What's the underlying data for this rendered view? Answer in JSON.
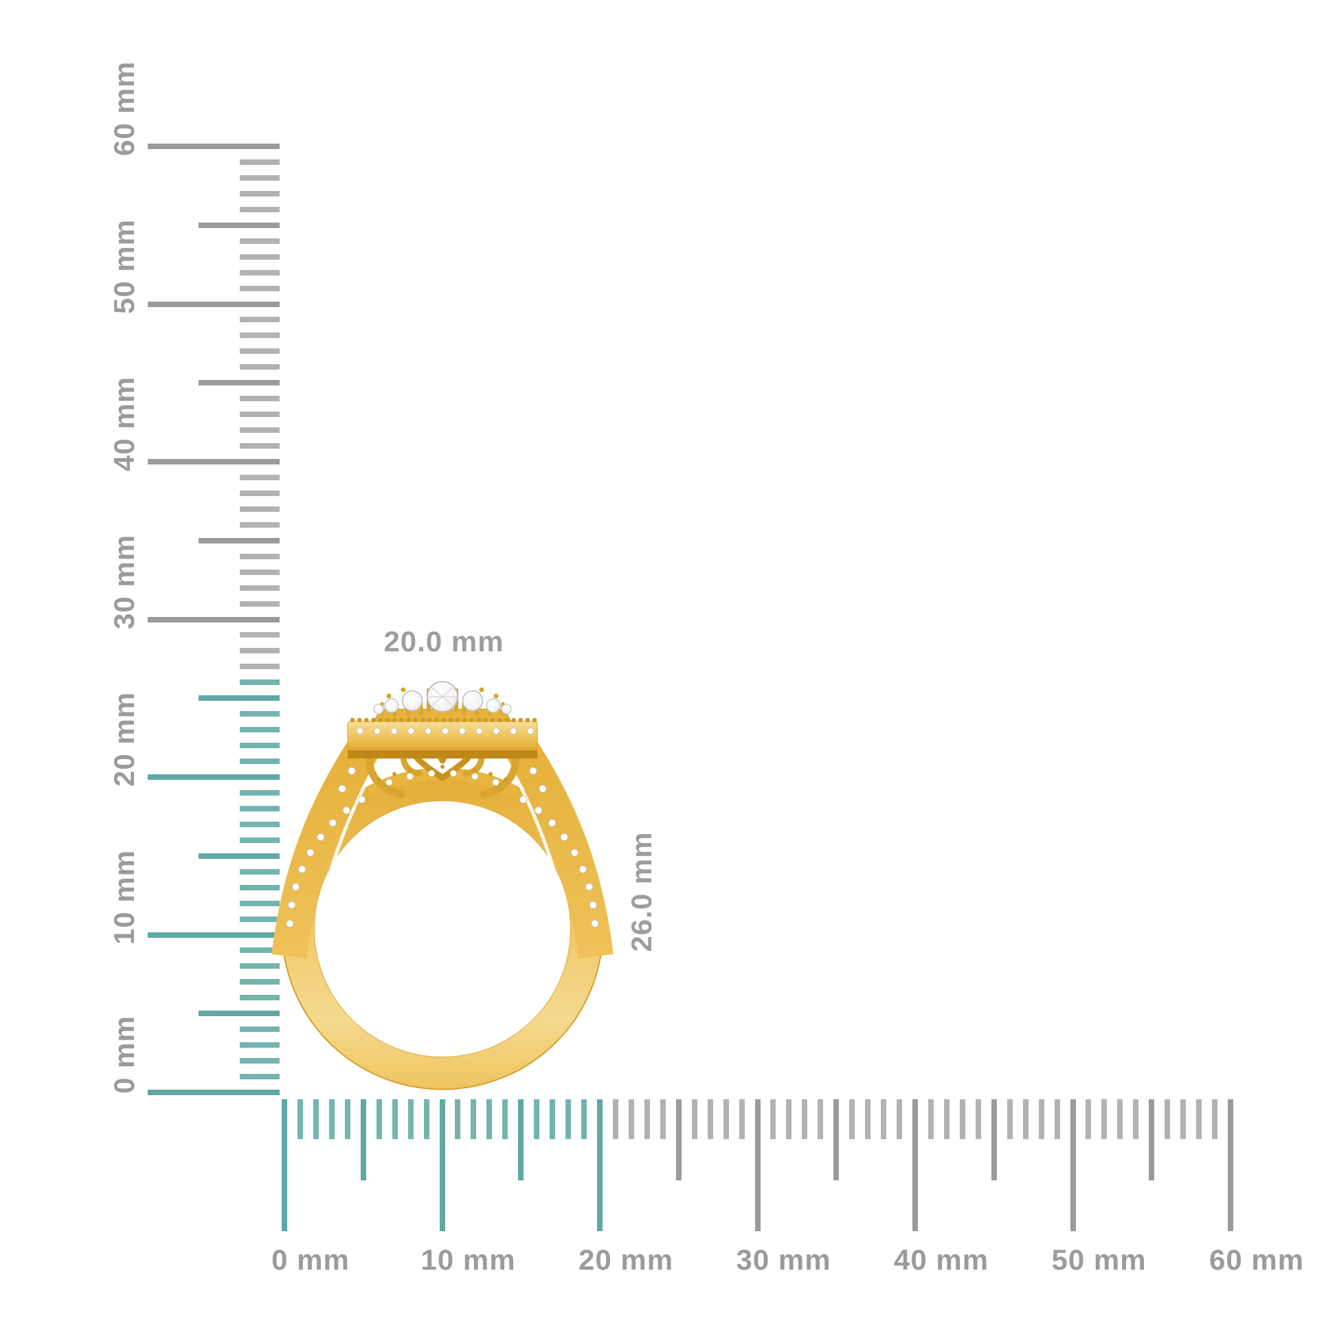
{
  "dimension_labels": {
    "width": "20.0 mm",
    "height": "26.0 mm"
  },
  "rulers": {
    "unit": "mm",
    "vertical": {
      "labels": [
        "0 mm",
        "10 mm",
        "20 mm",
        "30 mm",
        "40 mm",
        "50 mm",
        "60 mm"
      ],
      "min_mm": 0,
      "max_mm": 60,
      "label_step_mm": 10,
      "highlighted_range_mm": [
        0,
        26
      ]
    },
    "horizontal": {
      "labels": [
        "0 mm",
        "10 mm",
        "20 mm",
        "30 mm",
        "40 mm",
        "50 mm",
        "60 mm"
      ],
      "min_mm": 0,
      "max_mm": 60,
      "label_step_mm": 10,
      "highlighted_range_mm": [
        0,
        20
      ]
    },
    "colors": {
      "highlight_major": "#5FA8A3",
      "highlight_minor": "#73B4AF",
      "gray_major": "#9B9B9B",
      "gray_minor": "#B2B2B2",
      "label": "#9B9B9B"
    }
  },
  "ring": {
    "dimension_label_color": "#9E9E9E",
    "gold_color": "#EFC45C",
    "gold_dark_color": "#C8921F",
    "diamond_color": "#FFFFFF"
  }
}
